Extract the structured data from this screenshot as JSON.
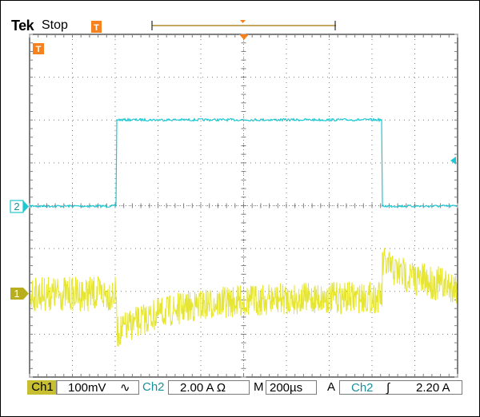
{
  "header": {
    "brand": "Tek",
    "acq_state": "Stop",
    "trigger_position_marker": "T"
  },
  "screen": {
    "grid_divisions_x": 10,
    "grid_divisions_y": 8,
    "background": "#ffffff",
    "grid_color": "#7d7d7d",
    "ch1_marker": "1",
    "ch2_marker": "2",
    "ch1_color": "#e6e632",
    "ch2_color": "#1ec8d2",
    "marker_orange": "#f5821e"
  },
  "readout": {
    "ch1_label": "Ch1",
    "ch1_scale": "100mV",
    "ch1_coupling_symbol": "∿",
    "ch2_label": "Ch2",
    "ch2_scale": "2.00 A Ω",
    "timebase_label": "M",
    "timebase_value": "200µs",
    "trigger_label": "A",
    "trigger_source": "Ch2",
    "trigger_slope_symbol": "∫",
    "trigger_level": "2.20 A"
  }
}
